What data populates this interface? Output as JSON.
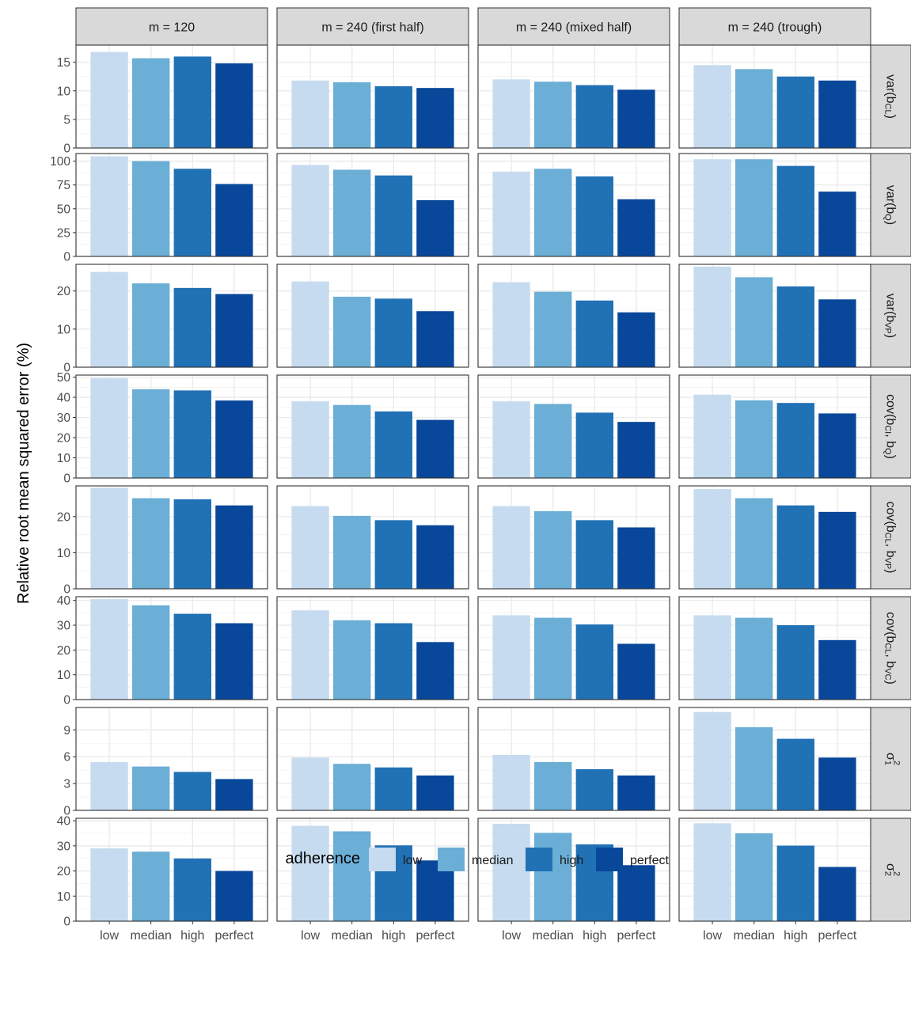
{
  "chart_data": {
    "type": "bar",
    "ylabel": "Relative root mean squared error (%)",
    "columns": [
      "m = 120",
      "m = 240 (first half)",
      "m = 240 (mixed half)",
      "m = 240 (trough)"
    ],
    "categories": [
      "low",
      "median",
      "high",
      "perfect"
    ],
    "legend": {
      "title": "adherence",
      "placement": "bottom",
      "items": [
        "low",
        "median",
        "high",
        "perfect"
      ]
    },
    "colors": {
      "low": "#c6dbef",
      "median": "#6baed6",
      "high": "#2171b5",
      "perfect": "#08479a",
      "strip_bg": "#d9d9d9",
      "grid": "#ebebeb",
      "panel_border": "#333333"
    },
    "grid": true,
    "rows": [
      {
        "name": "var(b_CL)",
        "label_parts": [
          {
            "t": "var(b"
          },
          {
            "t": "CL",
            "sub": true
          },
          {
            "t": ")"
          }
        ],
        "ylim": [
          0,
          18
        ],
        "ticks": [
          0,
          5,
          10,
          15
        ],
        "values": [
          [
            16.8,
            15.7,
            16.0,
            14.8
          ],
          [
            11.8,
            11.5,
            10.8,
            10.5
          ],
          [
            12.0,
            11.6,
            11.0,
            10.2
          ],
          [
            14.5,
            13.8,
            12.5,
            11.8
          ]
        ]
      },
      {
        "name": "var(b_Q)",
        "label_parts": [
          {
            "t": "var(b"
          },
          {
            "t": "Q",
            "sub": true
          },
          {
            "t": ")"
          }
        ],
        "ylim": [
          0,
          108
        ],
        "ticks": [
          0,
          25,
          50,
          75,
          100
        ],
        "values": [
          [
            105,
            100,
            92,
            76
          ],
          [
            96,
            91,
            85,
            59
          ],
          [
            89,
            92,
            84,
            60
          ],
          [
            102,
            102,
            95,
            68
          ]
        ]
      },
      {
        "name": "var(b_VP)",
        "label_parts": [
          {
            "t": "var(b"
          },
          {
            "t": "VP",
            "sub": true
          },
          {
            "t": ")"
          }
        ],
        "ylim": [
          0,
          27
        ],
        "ticks": [
          0,
          10,
          20
        ],
        "values": [
          [
            25.0,
            22.0,
            20.8,
            19.2
          ],
          [
            22.5,
            18.5,
            18.0,
            14.7
          ],
          [
            22.3,
            19.8,
            17.5,
            14.4
          ],
          [
            26.4,
            23.6,
            21.2,
            17.8
          ]
        ]
      },
      {
        "name": "cov(b_CI, b_Q)",
        "label_parts": [
          {
            "t": "cov(b"
          },
          {
            "t": "CI",
            "sub": true
          },
          {
            "t": ", b"
          },
          {
            "t": "Q",
            "sub": true
          },
          {
            "t": ")"
          }
        ],
        "ylim": [
          0,
          51
        ],
        "ticks": [
          0,
          10,
          20,
          30,
          40,
          50
        ],
        "values": [
          [
            49.5,
            44.0,
            43.4,
            38.4
          ],
          [
            38.0,
            36.2,
            33.0,
            28.8
          ],
          [
            38.0,
            36.7,
            32.4,
            27.8
          ],
          [
            41.3,
            38.5,
            37.2,
            32.0
          ]
        ]
      },
      {
        "name": "cov(b_CL, b_VP)",
        "label_parts": [
          {
            "t": "cov(b"
          },
          {
            "t": "CL",
            "sub": true
          },
          {
            "t": ", b"
          },
          {
            "t": "VP",
            "sub": true
          },
          {
            "t": ")"
          }
        ],
        "ylim": [
          0,
          28.5
        ],
        "ticks": [
          0,
          10,
          20
        ],
        "values": [
          [
            28.0,
            25.1,
            24.8,
            23.1
          ],
          [
            22.9,
            20.2,
            19.0,
            17.6
          ],
          [
            22.9,
            21.5,
            19.0,
            17.0
          ],
          [
            27.6,
            25.1,
            23.1,
            21.3
          ]
        ]
      },
      {
        "name": "cov(b_CL, b_VC)",
        "label_parts": [
          {
            "t": "cov(b"
          },
          {
            "t": "CL",
            "sub": true
          },
          {
            "t": ", b"
          },
          {
            "t": "VC",
            "sub": true
          },
          {
            "t": ")"
          }
        ],
        "ylim": [
          0,
          41.5
        ],
        "ticks": [
          0,
          10,
          20,
          30,
          40
        ],
        "values": [
          [
            40.5,
            38.0,
            34.6,
            30.8
          ],
          [
            36.0,
            32.0,
            30.8,
            23.2
          ],
          [
            34.0,
            33.0,
            30.3,
            22.5
          ],
          [
            34.0,
            33.0,
            30.0,
            24.0
          ]
        ]
      },
      {
        "name": "σ1²",
        "label_parts": [
          {
            "t": "σ"
          },
          {
            "t": "1",
            "sub": true
          },
          {
            "t": "2",
            "sup": true
          }
        ],
        "ylim": [
          0,
          11.5
        ],
        "ticks": [
          0,
          3,
          6,
          9
        ],
        "values": [
          [
            5.4,
            4.9,
            4.3,
            3.5
          ],
          [
            5.9,
            5.2,
            4.8,
            3.9
          ],
          [
            6.2,
            5.4,
            4.6,
            3.9
          ],
          [
            11.0,
            9.3,
            8.0,
            5.9
          ]
        ]
      },
      {
        "name": "σ2²",
        "label_parts": [
          {
            "t": "σ"
          },
          {
            "t": "2",
            "sub": true
          },
          {
            "t": "2",
            "sup": true
          }
        ],
        "ylim": [
          0,
          41
        ],
        "ticks": [
          0,
          10,
          20,
          30,
          40
        ],
        "values": [
          [
            29.0,
            27.7,
            25.0,
            20.0
          ],
          [
            38.0,
            35.8,
            30.2,
            24.2
          ],
          [
            38.8,
            35.2,
            30.6,
            22.3
          ],
          [
            39.0,
            35.0,
            30.1,
            21.6
          ]
        ]
      }
    ]
  }
}
